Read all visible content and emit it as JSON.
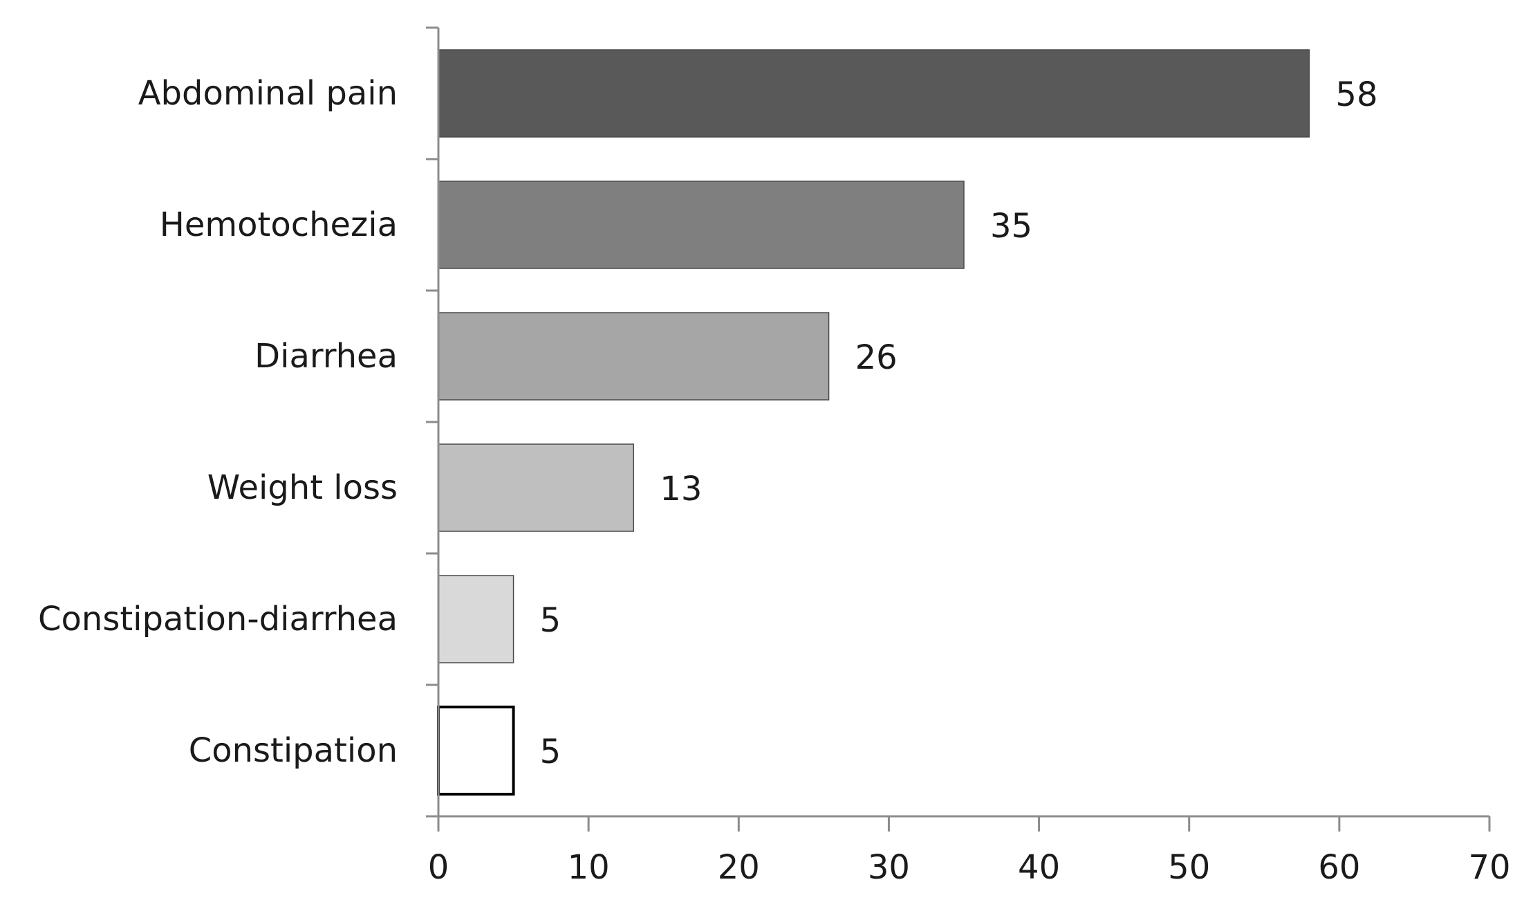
{
  "chart_data": {
    "type": "bar",
    "orientation": "horizontal",
    "title": "",
    "xlabel": "",
    "ylabel": "",
    "categories": [
      "Abdominal pain",
      "Hemotochezia",
      "Diarrhea",
      "Weight loss",
      "Constipation-diarrhea",
      "Constipation"
    ],
    "values": [
      58,
      35,
      26,
      13,
      5,
      5
    ],
    "data_labels": [
      "58",
      "35",
      "26",
      "13",
      "5",
      "5"
    ],
    "bar_colors": [
      "#595959",
      "#7f7f7f",
      "#a6a6a6",
      "#bfbfbf",
      "#d9d9d9",
      "#ffffff"
    ],
    "xlim": [
      0,
      70
    ],
    "xticks": [
      0,
      10,
      20,
      30,
      40,
      50,
      60,
      70
    ],
    "xtick_labels": [
      "0",
      "10",
      "20",
      "30",
      "40",
      "50",
      "60",
      "70"
    ],
    "grid": false,
    "legend": "none"
  }
}
